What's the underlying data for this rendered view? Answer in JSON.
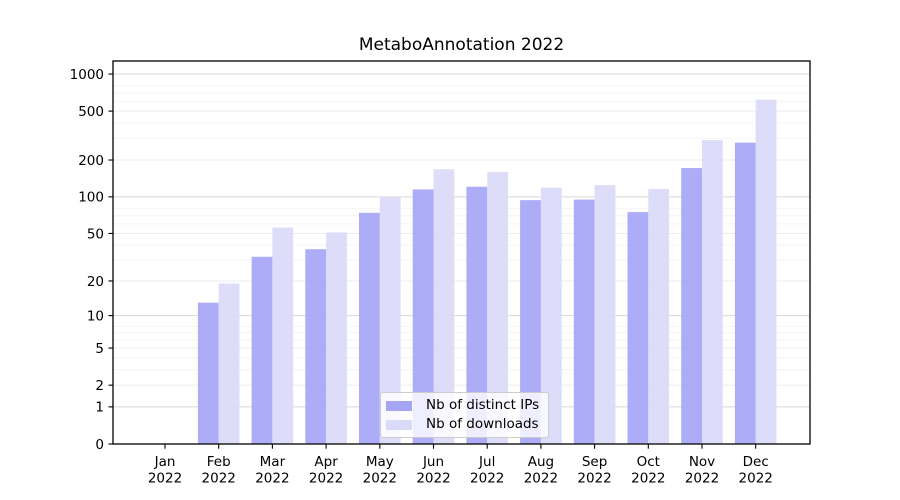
{
  "chart_data": {
    "type": "bar",
    "title": "MetaboAnnotation 2022",
    "categories": [
      "Jan",
      "Feb",
      "Mar",
      "Apr",
      "May",
      "Jun",
      "Jul",
      "Aug",
      "Sep",
      "Oct",
      "Nov",
      "Dec"
    ],
    "x_year_label": "2022",
    "series": [
      {
        "name": "Nb of distinct IPs",
        "color": "#a5a5f6",
        "values": [
          0,
          13,
          32,
          37,
          74,
          115,
          121,
          94,
          95,
          75,
          172,
          277
        ]
      },
      {
        "name": "Nb of downloads",
        "color": "#dadaf9",
        "values": [
          0,
          19,
          56,
          51,
          100,
          168,
          160,
          119,
          125,
          116,
          291,
          620
        ]
      }
    ],
    "y_axis": {
      "scale": "log10(1+v)",
      "ticks": [
        0,
        1,
        2,
        5,
        10,
        20,
        50,
        100,
        200,
        500,
        1000
      ],
      "min": 0,
      "max": 1276
    },
    "grid": {
      "major_values": [
        1,
        10,
        100,
        1000
      ],
      "mid_values": [
        2,
        5,
        20,
        50,
        200,
        500
      ],
      "minor_values": [
        3,
        4,
        6,
        7,
        8,
        30,
        40,
        60,
        70,
        80,
        300,
        400,
        600,
        700,
        800
      ],
      "major_color": "#d8d8d8",
      "mid_color": "#ececec",
      "minor_color": "#f4f4f4"
    },
    "legend": {
      "position": "lower center"
    },
    "style": {
      "spine_color": "#000000",
      "bar_opacity": 0.92,
      "background": "#ffffff"
    }
  }
}
